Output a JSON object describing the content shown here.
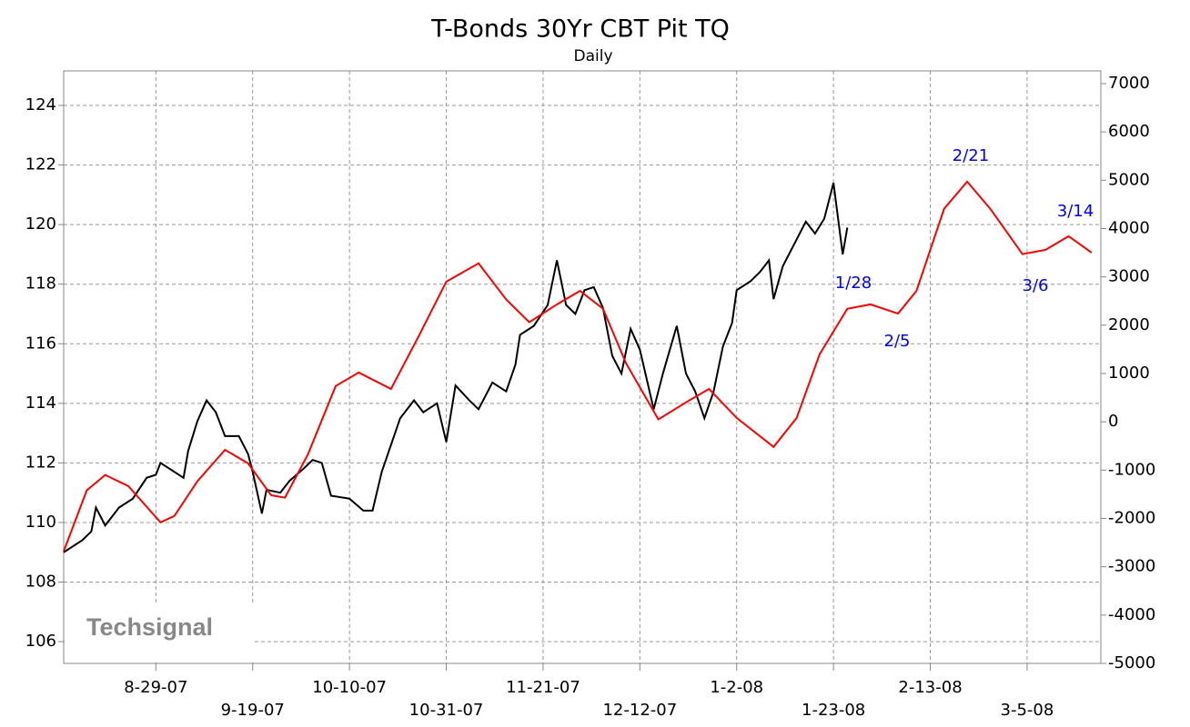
{
  "chart_data": {
    "type": "line",
    "title": "T-Bonds 30Yr CBT Pit TQ",
    "subtitle": "Daily",
    "watermark": "Techsignal",
    "xlim": [
      "2007-08-09",
      "2008-03-21"
    ],
    "xticks": [
      {
        "value": "2007-08-29",
        "label": "8-29-07"
      },
      {
        "value": "2007-09-19",
        "label": "9-19-07"
      },
      {
        "value": "2007-10-10",
        "label": "10-10-07"
      },
      {
        "value": "2007-10-31",
        "label": "10-31-07"
      },
      {
        "value": "2007-11-21",
        "label": "11-21-07"
      },
      {
        "value": "2007-12-12",
        "label": "12-12-07"
      },
      {
        "value": "2008-01-02",
        "label": "1-2-08"
      },
      {
        "value": "2008-01-23",
        "label": "1-23-08"
      },
      {
        "value": "2008-02-13",
        "label": "2-13-08"
      },
      {
        "value": "2008-03-05",
        "label": "3-5-08"
      }
    ],
    "ylim": [
      105.27,
      125.16
    ],
    "yticks": [
      106,
      108,
      110,
      112,
      114,
      116,
      118,
      120,
      122,
      124
    ],
    "y2lim": [
      -5000,
      7263
    ],
    "y2ticks": [
      -5000,
      -4000,
      -3000,
      -2000,
      -1000,
      0,
      1000,
      2000,
      3000,
      4000,
      5000,
      6000,
      7000
    ],
    "grid": true,
    "series": [
      {
        "color": "#000000",
        "axis": "y",
        "x": [
          "2007-08-09",
          "2007-08-13",
          "2007-08-15",
          "2007-08-16",
          "2007-08-18",
          "2007-08-21",
          "2007-08-24",
          "2007-08-27",
          "2007-08-29",
          "2007-08-30",
          "2007-09-02",
          "2007-09-04",
          "2007-09-05",
          "2007-09-07",
          "2007-09-09",
          "2007-09-11",
          "2007-09-13",
          "2007-09-16",
          "2007-09-18",
          "2007-09-19",
          "2007-09-21",
          "2007-09-22",
          "2007-09-25",
          "2007-09-27",
          "2007-09-30",
          "2007-10-02",
          "2007-10-04",
          "2007-10-06",
          "2007-10-10",
          "2007-10-13",
          "2007-10-15",
          "2007-10-17",
          "2007-10-19",
          "2007-10-21",
          "2007-10-24",
          "2007-10-26",
          "2007-10-29",
          "2007-10-31",
          "2007-11-02",
          "2007-11-05",
          "2007-11-07",
          "2007-11-10",
          "2007-11-13",
          "2007-11-15",
          "2007-11-16",
          "2007-11-19",
          "2007-11-22",
          "2007-11-24",
          "2007-11-26",
          "2007-11-28",
          "2007-11-30",
          "2007-12-02",
          "2007-12-04",
          "2007-12-06",
          "2007-12-08",
          "2007-12-10",
          "2007-12-12",
          "2007-12-15",
          "2007-12-17",
          "2007-12-20",
          "2007-12-22",
          "2007-12-24",
          "2007-12-26",
          "2007-12-28",
          "2007-12-30",
          "2008-01-01",
          "2008-01-02",
          "2008-01-05",
          "2008-01-07",
          "2008-01-09",
          "2008-01-10",
          "2008-01-12",
          "2008-01-15",
          "2008-01-17",
          "2008-01-19",
          "2008-01-21",
          "2008-01-23",
          "2008-01-25",
          "2008-01-26"
        ],
        "values": [
          109.0,
          109.4,
          109.7,
          110.5,
          109.9,
          110.5,
          110.8,
          111.5,
          111.6,
          112.0,
          111.7,
          111.5,
          112.4,
          113.4,
          114.1,
          113.7,
          112.9,
          112.9,
          112.3,
          111.7,
          110.3,
          111.1,
          111.0,
          111.4,
          111.8,
          112.1,
          112.0,
          110.9,
          110.8,
          110.4,
          110.4,
          111.7,
          112.6,
          113.5,
          114.1,
          113.7,
          114.0,
          112.7,
          114.6,
          114.1,
          113.8,
          114.7,
          114.4,
          115.3,
          116.3,
          116.6,
          117.3,
          118.8,
          117.3,
          117.0,
          117.8,
          117.9,
          117.2,
          115.6,
          115.0,
          116.5,
          115.8,
          113.8,
          115.0,
          116.6,
          115.0,
          114.4,
          113.5,
          114.4,
          115.9,
          116.7,
          117.8,
          118.1,
          118.4,
          118.8,
          117.5,
          118.6,
          119.5,
          120.1,
          119.7,
          120.2,
          121.4,
          119.0,
          119.9
        ]
      },
      {
        "color": "#ff0000",
        "axis": "y2",
        "x": [
          "2007-08-09",
          "2007-08-14",
          "2007-08-18",
          "2007-08-23",
          "2007-08-30",
          "2007-09-02",
          "2007-09-07",
          "2007-09-13",
          "2007-09-18",
          "2007-09-23",
          "2007-09-26",
          "2007-10-01",
          "2007-10-07",
          "2007-10-12",
          "2007-10-19",
          "2007-10-25",
          "2007-10-31",
          "2007-11-07",
          "2007-11-13",
          "2007-11-18",
          "2007-11-24",
          "2007-11-29",
          "2007-12-04",
          "2007-12-09",
          "2007-12-16",
          "2007-12-23",
          "2007-12-27",
          "2008-01-02",
          "2008-01-10",
          "2008-01-15",
          "2008-01-20",
          "2008-01-26",
          "2008-01-31",
          "2008-02-06",
          "2008-02-10",
          "2008-02-16",
          "2008-02-21",
          "2008-02-26",
          "2008-03-04",
          "2008-03-09",
          "2008-03-14",
          "2008-03-19"
        ],
        "values": [
          -2680,
          -1420,
          -1100,
          -1330,
          -2080,
          -1950,
          -1230,
          -580,
          -860,
          -1520,
          -1570,
          -670,
          740,
          1020,
          680,
          1770,
          2900,
          3280,
          2530,
          2060,
          2430,
          2710,
          2340,
          1210,
          50,
          460,
          680,
          80,
          -520,
          80,
          1400,
          2340,
          2430,
          2240,
          2710,
          4410,
          4970,
          4410,
          3470,
          3560,
          3840,
          3500
        ]
      }
    ],
    "annotations": [
      "2/21",
      "3/14",
      "1/28",
      "3/6",
      "2/5"
    ]
  }
}
